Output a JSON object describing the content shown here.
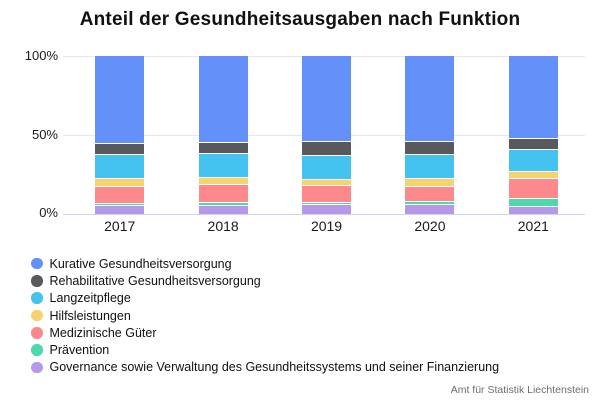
{
  "chart_data": {
    "type": "bar",
    "stacked": true,
    "orientation": "vertical",
    "title": "Anteil der Gesundheitsausgaben nach Funktion",
    "categories": [
      "2017",
      "2018",
      "2019",
      "2020",
      "2021"
    ],
    "series": [
      {
        "name": "Kurative Gesundheitsversorgung",
        "color": "#6490fa",
        "values": [
          54.9,
          54.4,
          53.9,
          54.0,
          51.9
        ]
      },
      {
        "name": "Rehabilitative Gesundheitsversorgung",
        "color": "#59595d",
        "values": [
          7.3,
          6.9,
          8.6,
          8.2,
          6.9
        ]
      },
      {
        "name": "Langzeitpflege",
        "color": "#44c3f0",
        "values": [
          14.9,
          15.2,
          15.5,
          15.0,
          14.3
        ]
      },
      {
        "name": "Hilfsleistungen",
        "color": "#f5d36e",
        "values": [
          4.9,
          4.6,
          3.8,
          4.8,
          4.0
        ]
      },
      {
        "name": "Medizinische Güter",
        "color": "#fe898c",
        "values": [
          10.9,
          11.4,
          10.4,
          9.9,
          12.6
        ]
      },
      {
        "name": "Prävention",
        "color": "#4dd8ad",
        "values": [
          1.7,
          1.6,
          1.6,
          1.7,
          5.2
        ]
      },
      {
        "name": "Governance sowie Verwaltung des Gesundheitssystems und seiner Finanzierung",
        "color": "#b499ea",
        "values": [
          5.4,
          5.9,
          6.2,
          6.4,
          5.1
        ]
      }
    ],
    "ylabel": "",
    "xlabel": "",
    "ylim": [
      0,
      100
    ],
    "yticks": [
      "100%",
      "50%",
      "0%"
    ],
    "grid": true,
    "legend_position": "bottom-left",
    "source": "Amt für Statistik Liechtenstein"
  }
}
